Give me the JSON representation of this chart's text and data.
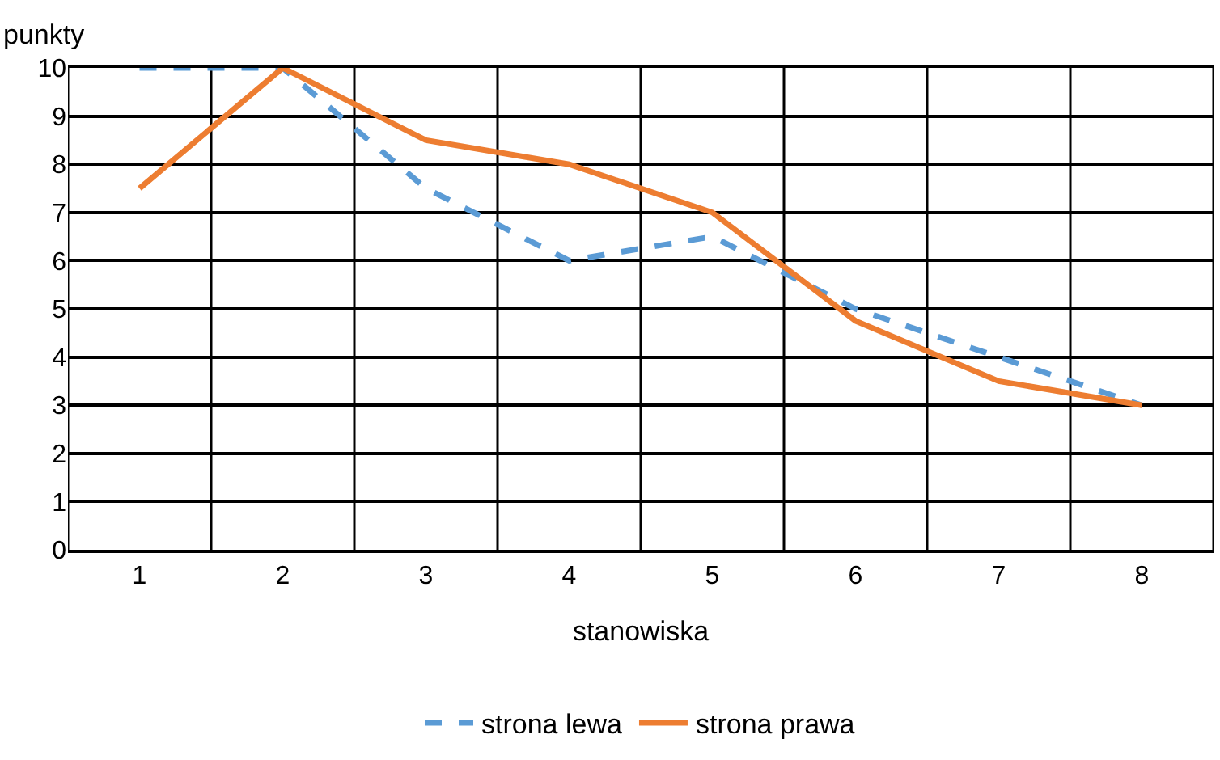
{
  "chart_data": {
    "type": "line",
    "ylabel": "punkty",
    "xlabel": "stanowiska",
    "categories": [
      "1",
      "2",
      "3",
      "4",
      "5",
      "6",
      "7",
      "8"
    ],
    "series": [
      {
        "name": "strona lewa",
        "color": "#5b9bd5",
        "line_style": "dashed",
        "values": [
          10,
          10,
          7.5,
          6,
          6.5,
          5,
          4,
          3
        ]
      },
      {
        "name": "strona prawa",
        "color": "#ed7d31",
        "line_style": "solid",
        "values": [
          7.5,
          10,
          8.5,
          8,
          7,
          4.75,
          3.5,
          3
        ]
      }
    ],
    "ylim": [
      0,
      10
    ],
    "yticks": [
      0,
      1,
      2,
      3,
      4,
      5,
      6,
      7,
      8,
      9,
      10
    ],
    "grid": true,
    "legend": "bottom",
    "marker": "none"
  }
}
